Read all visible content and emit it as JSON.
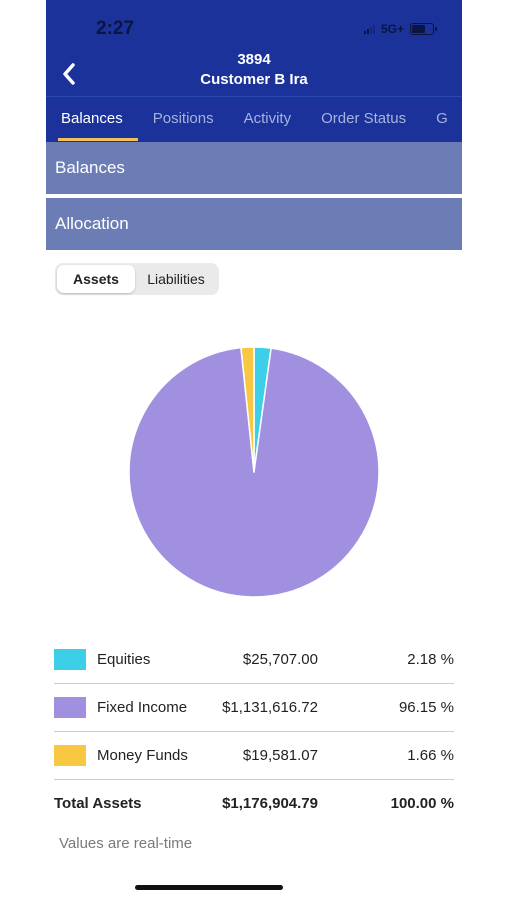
{
  "status": {
    "time": "2:27",
    "network": "5G+"
  },
  "header": {
    "account_number": "3894",
    "account_name": "Customer B Ira"
  },
  "tabs": [
    {
      "label": "Balances",
      "active": true
    },
    {
      "label": "Positions",
      "active": false
    },
    {
      "label": "Activity",
      "active": false
    },
    {
      "label": "Order Status",
      "active": false
    },
    {
      "label": "G",
      "active": false
    }
  ],
  "sections": {
    "balances": "Balances",
    "allocation": "Allocation"
  },
  "segment": {
    "assets": "Assets",
    "liabilities": "Liabilities",
    "selected": "Assets"
  },
  "colors": {
    "header": "#1a3299",
    "section": "#6c7db5",
    "equities": "#3dcfe8",
    "fixed_income": "#a190e0",
    "money_funds": "#f8c843"
  },
  "chart_data": {
    "type": "pie",
    "slices": [
      {
        "name": "Equities",
        "value": 25707.0,
        "percent": 2.18,
        "color": "#3dcfe8"
      },
      {
        "name": "Fixed Income",
        "value": 1131616.72,
        "percent": 96.15,
        "color": "#a190e0"
      },
      {
        "name": "Money Funds",
        "value": 19581.07,
        "percent": 1.66,
        "color": "#f8c843"
      }
    ]
  },
  "legend": {
    "rows": [
      {
        "label": "Equities",
        "value": "$25,707.00",
        "percent": "2.18 %"
      },
      {
        "label": "Fixed Income",
        "value": "$1,131,616.72",
        "percent": "96.15 %"
      },
      {
        "label": "Money Funds",
        "value": "$19,581.07",
        "percent": "1.66 %"
      }
    ],
    "total": {
      "label": "Total Assets",
      "value": "$1,176,904.79",
      "percent": "100.00 %"
    }
  },
  "footnote": "Values are real-time"
}
